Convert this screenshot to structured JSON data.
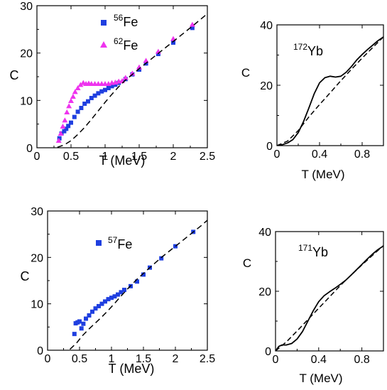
{
  "chart_data": [
    {
      "type": "scatter",
      "xlabel": "T (MeV)",
      "ylabel": "C",
      "xlim": [
        0,
        2.5
      ],
      "ylim": [
        0,
        30
      ],
      "xticks": [
        "0",
        "0.5",
        "1",
        "1.5",
        "2",
        "2.5"
      ],
      "yticks": [
        "0",
        "10",
        "20",
        "30"
      ],
      "legend_placement": "top-left",
      "series": [
        {
          "name": "56Fe",
          "label_mass": "56",
          "label_element": "Fe",
          "marker": "square",
          "color": "#1f3fe0",
          "x": [
            0.33,
            0.36,
            0.4,
            0.43,
            0.46,
            0.5,
            0.55,
            0.6,
            0.65,
            0.7,
            0.75,
            0.8,
            0.85,
            0.9,
            0.95,
            1.0,
            1.05,
            1.1,
            1.15,
            1.2,
            1.3,
            1.4,
            1.5,
            1.6,
            1.78,
            2.0,
            2.28
          ],
          "y": [
            2.0,
            3.0,
            3.5,
            4.0,
            4.6,
            5.3,
            6.5,
            7.6,
            8.4,
            9.3,
            9.8,
            10.5,
            11.0,
            11.5,
            11.9,
            12.2,
            12.6,
            13.0,
            13.3,
            13.7,
            14.5,
            15.5,
            16.5,
            17.8,
            19.8,
            22.2,
            25.3
          ]
        },
        {
          "name": "62Fe",
          "label_mass": "62",
          "label_element": "Fe",
          "marker": "triangle",
          "color": "#ee33ee",
          "x": [
            0.32,
            0.35,
            0.38,
            0.41,
            0.44,
            0.47,
            0.5,
            0.53,
            0.56,
            0.6,
            0.64,
            0.68,
            0.72,
            0.76,
            0.8,
            0.85,
            0.9,
            0.95,
            1.0,
            1.05,
            1.1,
            1.15,
            1.2,
            1.25,
            1.3,
            1.4,
            1.5,
            1.6,
            1.78,
            2.0,
            2.28
          ],
          "y": [
            1.5,
            3.0,
            4.5,
            5.8,
            7.5,
            8.8,
            9.9,
            10.8,
            11.8,
            12.6,
            13.3,
            13.7,
            13.5,
            13.6,
            13.5,
            13.5,
            13.5,
            13.5,
            13.5,
            13.5,
            13.7,
            13.8,
            14.0,
            14.1,
            14.8,
            15.7,
            17.0,
            18.4,
            20.3,
            23.0,
            26.0
          ]
        },
        {
          "marker": "dashed-line",
          "color": "#000000",
          "x": [
            0.3,
            0.4,
            0.5,
            0.6,
            0.7,
            0.8,
            0.9,
            1.0,
            1.1,
            1.2,
            1.3,
            1.5,
            1.7,
            1.9,
            2.1,
            2.3,
            2.5
          ],
          "y": [
            0.1,
            0.6,
            1.5,
            2.8,
            4.3,
            6.0,
            7.8,
            9.6,
            11.3,
            12.9,
            14.3,
            16.7,
            19.0,
            21.3,
            23.6,
            25.9,
            28.3
          ]
        }
      ]
    },
    {
      "type": "line",
      "xlabel": "T (MeV)",
      "ylabel": "C",
      "xlim": [
        0,
        1.0
      ],
      "ylim": [
        0,
        40
      ],
      "xticks": [
        "0",
        "0.4",
        "0.8"
      ],
      "yticks": [
        "0",
        "20",
        "40"
      ],
      "annotation_mass": "172",
      "annotation_element": "Yb",
      "series": [
        {
          "style": "solid",
          "color": "#000000",
          "x": [
            0.0,
            0.05,
            0.1,
            0.15,
            0.2,
            0.25,
            0.3,
            0.35,
            0.4,
            0.45,
            0.5,
            0.55,
            0.6,
            0.65,
            0.7,
            0.75,
            0.8,
            0.85,
            0.9,
            0.95,
            1.0
          ],
          "y": [
            0.0,
            0.3,
            0.9,
            2.0,
            4.3,
            8.0,
            12.5,
            17.2,
            20.8,
            22.5,
            23.0,
            22.7,
            23.0,
            24.3,
            26.2,
            28.4,
            30.2,
            31.8,
            33.3,
            34.8,
            36.0
          ]
        },
        {
          "style": "dashed",
          "color": "#000000",
          "x": [
            0.0,
            0.1,
            0.2,
            0.3,
            0.4,
            0.5,
            0.6,
            0.7,
            0.8,
            0.9,
            1.0
          ],
          "y": [
            0.0,
            1.5,
            5.0,
            9.5,
            13.6,
            17.5,
            21.5,
            25.3,
            29.0,
            32.5,
            36.0
          ]
        }
      ]
    },
    {
      "type": "scatter",
      "xlabel": "T (MeV)",
      "ylabel": "C",
      "xlim": [
        0,
        2.5
      ],
      "ylim": [
        0,
        30
      ],
      "xticks": [
        "0",
        "0.5",
        "1",
        "1.5",
        "2",
        "2.5"
      ],
      "yticks": [
        "0",
        "10",
        "20",
        "30"
      ],
      "legend_placement": "top-left",
      "series": [
        {
          "name": "57Fe",
          "label_mass": "57",
          "label_element": "Fe",
          "marker": "square",
          "color": "#1f3fe0",
          "x": [
            0.42,
            0.44,
            0.47,
            0.5,
            0.53,
            0.56,
            0.6,
            0.65,
            0.7,
            0.75,
            0.8,
            0.85,
            0.9,
            0.95,
            1.0,
            1.05,
            1.1,
            1.15,
            1.2,
            1.3,
            1.4,
            1.5,
            1.6,
            1.78,
            2.0,
            2.28
          ],
          "y": [
            3.5,
            5.8,
            6.0,
            6.2,
            4.7,
            5.7,
            6.8,
            7.5,
            8.3,
            9.0,
            9.5,
            10.0,
            10.5,
            11.0,
            11.3,
            11.6,
            12.0,
            12.5,
            13.0,
            13.8,
            14.8,
            16.3,
            17.8,
            19.8,
            22.4,
            25.5
          ]
        },
        {
          "marker": "dashed-line",
          "color": "#000000",
          "x": [
            0.35,
            0.45,
            0.55,
            0.65,
            0.75,
            0.85,
            0.95,
            1.05,
            1.15,
            1.25,
            1.4,
            1.6,
            1.8,
            2.0,
            2.2,
            2.4,
            2.5
          ],
          "y": [
            0.2,
            1.5,
            3.2,
            4.6,
            5.9,
            7.2,
            8.6,
            10.1,
            11.7,
            13.2,
            15.3,
            17.8,
            20.2,
            22.4,
            24.6,
            26.8,
            28.0
          ]
        }
      ]
    },
    {
      "type": "line",
      "xlabel": "T (MeV)",
      "ylabel": "C",
      "xlim": [
        0,
        1.0
      ],
      "ylim": [
        0,
        40
      ],
      "xticks": [
        "0",
        "0.4",
        "0.8"
      ],
      "yticks": [
        "0",
        "20",
        "40"
      ],
      "annotation_mass": "171",
      "annotation_element": "Yb",
      "series": [
        {
          "style": "solid",
          "color": "#000000",
          "x": [
            0.0,
            0.03,
            0.06,
            0.1,
            0.15,
            0.2,
            0.25,
            0.3,
            0.35,
            0.4,
            0.45,
            0.5,
            0.55,
            0.6,
            0.65,
            0.7,
            0.75,
            0.8,
            0.85,
            0.9,
            0.95,
            1.0
          ],
          "y": [
            0.0,
            1.5,
            2.0,
            2.0,
            2.5,
            4.0,
            6.5,
            10.0,
            13.5,
            16.5,
            18.5,
            19.8,
            21.0,
            22.3,
            23.7,
            25.4,
            27.2,
            29.0,
            30.8,
            32.5,
            34.0,
            35.2
          ]
        },
        {
          "style": "dashed",
          "color": "#000000",
          "x": [
            0.0,
            0.1,
            0.2,
            0.3,
            0.4,
            0.5,
            0.6,
            0.7,
            0.8,
            0.9,
            1.0
          ],
          "y": [
            0.0,
            3.0,
            6.7,
            10.5,
            14.3,
            18.1,
            21.9,
            25.4,
            28.8,
            32.1,
            35.3
          ]
        }
      ]
    }
  ]
}
